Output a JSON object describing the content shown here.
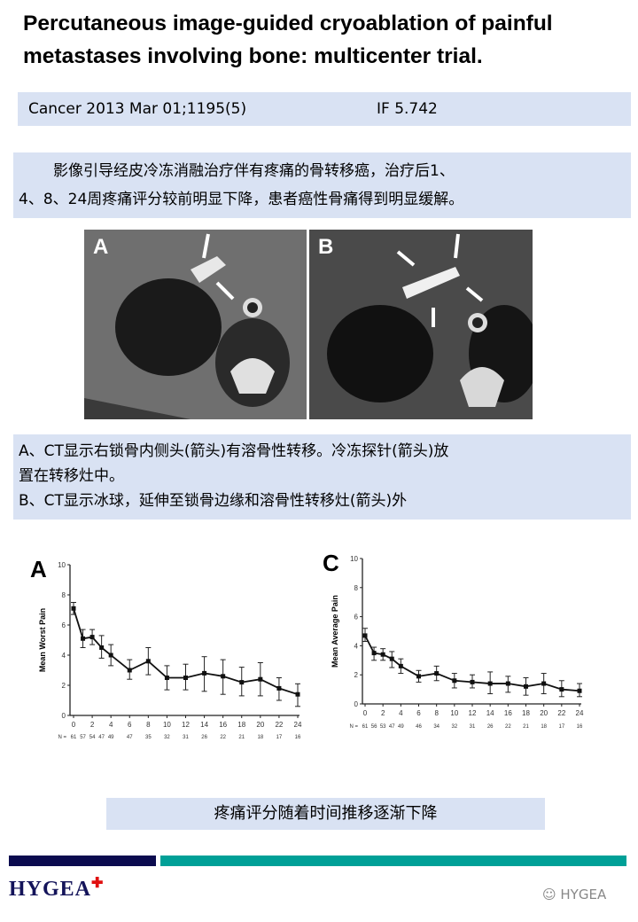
{
  "title": {
    "line1": "Percutaneous image-guided cryoablation of painful",
    "line2": "metastases involving bone: multicenter trial."
  },
  "citation": {
    "journal": "Cancer 2013 Mar 01;1195(5)",
    "impact_factor": "IF 5.742"
  },
  "summary": {
    "line1": "影像引导经皮冷冻消融治疗伴有疼痛的骨转移癌，治疗后1、",
    "line2": "4、8、24周疼痛评分较前明显下降，患者癌性骨痛得到明显缓解。"
  },
  "images": [
    {
      "label": "A"
    },
    {
      "label": "B"
    }
  ],
  "caption": {
    "line1": "A、CT显示右锁骨内侧头(箭头)有溶骨性转移。冷冻探针(箭头)放",
    "line2": "置在转移灶中。",
    "line3": "B、CT显示冰球，延伸至锁骨边缘和溶骨性转移灶(箭头)外"
  },
  "chart_data": [
    {
      "type": "line",
      "panel": "A",
      "ylabel": "Mean Worst Pain",
      "ylim": [
        0,
        10
      ],
      "yticks": [
        0,
        2,
        4,
        6,
        8,
        10
      ],
      "xticks": [
        0,
        2,
        4,
        6,
        8,
        10,
        12,
        14,
        16,
        18,
        20,
        22,
        24
      ],
      "x": [
        0,
        1,
        2,
        3,
        4,
        6,
        8,
        10,
        12,
        14,
        16,
        18,
        20,
        22,
        24
      ],
      "y": [
        7.1,
        5.1,
        5.2,
        4.5,
        4.0,
        3.0,
        3.6,
        2.5,
        2.5,
        2.8,
        2.6,
        2.2,
        2.4,
        1.8,
        1.4
      ],
      "err_low": [
        6.7,
        4.5,
        4.7,
        3.8,
        3.3,
        2.4,
        2.7,
        1.7,
        1.7,
        1.6,
        1.4,
        1.3,
        1.3,
        1.0,
        0.6
      ],
      "err_high": [
        7.5,
        5.7,
        5.7,
        5.3,
        4.7,
        3.7,
        4.5,
        3.3,
        3.4,
        3.9,
        3.7,
        3.2,
        3.5,
        2.5,
        2.1
      ],
      "n_label": "N =",
      "n": [
        61,
        57,
        54,
        47,
        49,
        47,
        35,
        32,
        31,
        26,
        22,
        21,
        18,
        17,
        16
      ]
    },
    {
      "type": "line",
      "panel": "C",
      "ylabel": "Mean Average Pain",
      "ylim": [
        0,
        10
      ],
      "yticks": [
        0,
        2,
        4,
        6,
        8,
        10
      ],
      "xticks": [
        0,
        2,
        4,
        6,
        8,
        10,
        12,
        14,
        16,
        18,
        20,
        22,
        24
      ],
      "x": [
        0,
        1,
        2,
        3,
        4,
        6,
        8,
        10,
        12,
        14,
        16,
        18,
        20,
        22,
        24
      ],
      "y": [
        4.7,
        3.5,
        3.4,
        3.1,
        2.6,
        1.9,
        2.1,
        1.6,
        1.5,
        1.4,
        1.4,
        1.2,
        1.4,
        1.0,
        0.9
      ],
      "err_low": [
        4.3,
        3.0,
        3.0,
        2.5,
        2.1,
        1.5,
        1.6,
        1.1,
        1.1,
        0.7,
        0.8,
        0.6,
        0.7,
        0.5,
        0.5
      ],
      "err_high": [
        5.2,
        3.9,
        3.8,
        3.6,
        3.1,
        2.3,
        2.6,
        2.1,
        2.0,
        2.2,
        1.9,
        1.8,
        2.1,
        1.6,
        1.4
      ],
      "n_label": "N =",
      "n": [
        61,
        56,
        53,
        47,
        49,
        46,
        34,
        32,
        31,
        26,
        22,
        21,
        18,
        17,
        16
      ]
    }
  ],
  "bottom_note": "疼痛评分随着时间推移逐渐下降",
  "footer": {
    "logo": "HYGEA",
    "watermark": "HYGEA",
    "colors": {
      "navy": "#0b0b4f",
      "teal": "#00a097",
      "logo_plus": "#e01010"
    }
  }
}
